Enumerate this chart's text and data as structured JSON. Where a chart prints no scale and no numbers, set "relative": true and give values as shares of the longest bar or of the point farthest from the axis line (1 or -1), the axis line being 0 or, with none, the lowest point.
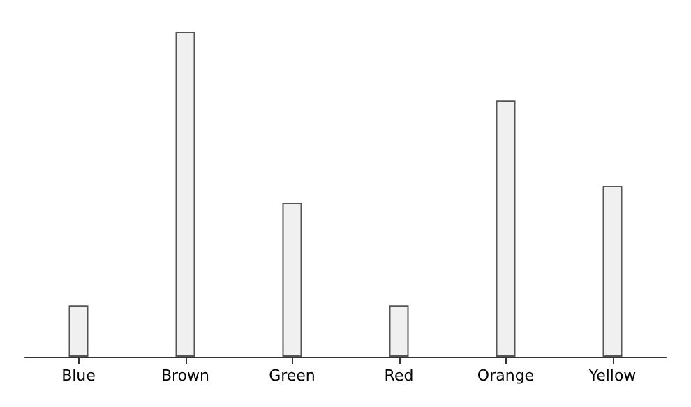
{
  "chart_data": {
    "type": "bar",
    "relative": true,
    "categories": [
      "Blue",
      "Brown",
      "Green",
      "Red",
      "Orange",
      "Yellow"
    ],
    "values": [
      0.158,
      1,
      0.474,
      0.158,
      0.789,
      0.526
    ],
    "color": "#f0f0f0"
  }
}
